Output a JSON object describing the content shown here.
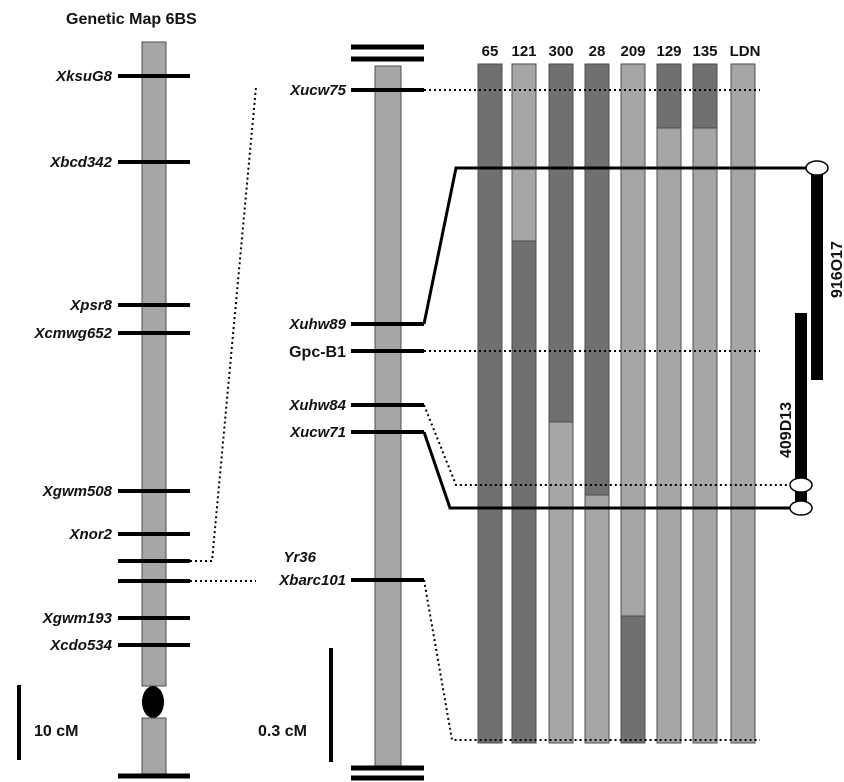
{
  "title": "Genetic Map 6BS",
  "colors": {
    "chromosome": "#a6a6a6",
    "chromosome_stroke": "#4d4d4d",
    "donor_segment": "#707070",
    "recipient_segment": "#a6a6a6",
    "line": "#000000"
  },
  "genetic_map": {
    "markers": [
      "XksuG8",
      "Xbcd342",
      "Xpsr8",
      "Xcmwg652",
      "Xgwm508",
      "Xnor2",
      "",
      "",
      "Xgwm193",
      "Xcdo534"
    ],
    "scale_label": "10 cM"
  },
  "physical_map": {
    "markers": [
      {
        "name": "Xucw75",
        "style": "italic"
      },
      {
        "name": "Xuhw89",
        "style": "italic"
      },
      {
        "name": "Gpc-B1",
        "style": "plain"
      },
      {
        "name": "Xuhw84",
        "style": "italic"
      },
      {
        "name": "Xucw71",
        "style": "italic"
      },
      {
        "name": "Yr36",
        "style": "italic"
      },
      {
        "name": "Xbarc101",
        "style": "italic"
      }
    ],
    "scale_label": "0.3 cM"
  },
  "lines": [
    "65",
    "121",
    "300",
    "28",
    "209",
    "129",
    "135",
    "LDN"
  ],
  "bacs": [
    "916O17",
    "409D13"
  ]
}
